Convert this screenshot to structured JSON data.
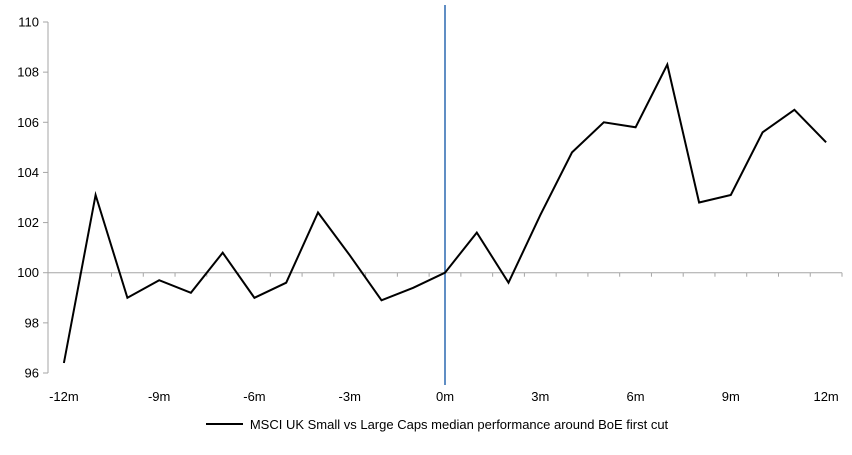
{
  "chart_data": {
    "type": "line",
    "x_months": [
      -12,
      -11,
      -10,
      -9,
      -8,
      -7,
      -6,
      -5,
      -4,
      -3,
      -2,
      -1,
      0,
      1,
      2,
      3,
      4,
      5,
      6,
      7,
      8,
      9,
      10,
      11,
      12
    ],
    "series": [
      {
        "name": "MSCI UK Small vs Large Caps median performance around BoE first cut",
        "color": "#000000",
        "values": [
          96.4,
          103.1,
          99.0,
          99.7,
          99.2,
          100.8,
          99.0,
          99.6,
          102.4,
          100.7,
          98.9,
          99.4,
          100.0,
          101.6,
          99.6,
          102.3,
          104.8,
          106.0,
          105.8,
          108.3,
          102.8,
          103.1,
          105.6,
          106.5,
          105.2
        ]
      }
    ],
    "title": "",
    "xlabel": "",
    "ylabel": "",
    "ylim": [
      96,
      110
    ],
    "y_ticks": [
      96,
      98,
      100,
      102,
      104,
      106,
      108,
      110
    ],
    "x_tick_months": [
      -12,
      -9,
      -6,
      -3,
      0,
      3,
      6,
      9,
      12
    ],
    "x_tick_labels": [
      "-12m",
      "-9m",
      "-6m",
      "-3m",
      "0m",
      "3m",
      "6m",
      "9m",
      "12m"
    ],
    "baseline_value": 100,
    "event_line": {
      "at_month": 0,
      "color": "#4f81bd"
    },
    "axis_color": "#a6a6a6",
    "grid": "baseline-only",
    "legend_position": "bottom"
  },
  "legend": {
    "label": "MSCI UK Small vs Large Caps median performance around BoE first cut"
  }
}
